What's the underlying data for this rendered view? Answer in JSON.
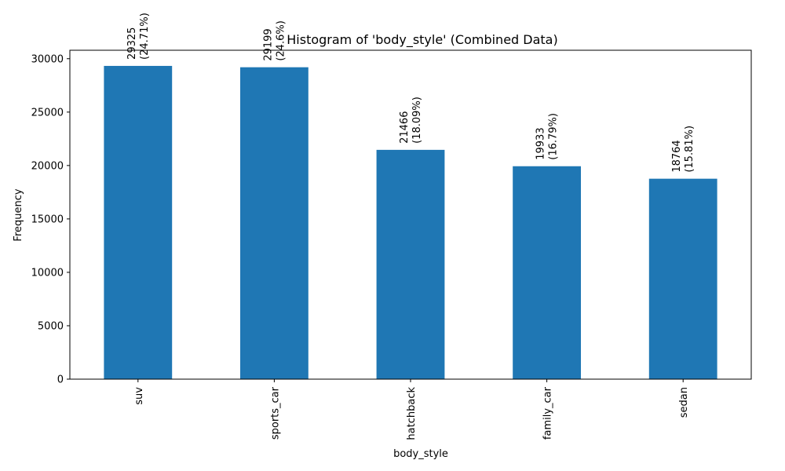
{
  "chart_data": {
    "type": "bar",
    "title": "Histogram of 'body_style' (Combined Data)",
    "xlabel": "body_style",
    "ylabel": "Frequency",
    "categories": [
      "suv",
      "sports_car",
      "hatchback",
      "family_car",
      "sedan"
    ],
    "values": [
      29325,
      29199,
      21466,
      19933,
      18764
    ],
    "percentages": [
      "(24.71%)",
      "(24.6%)",
      "(18.09%)",
      "(16.79%)",
      "(15.81%)"
    ],
    "value_labels": [
      "29325",
      "29199",
      "21466",
      "19933",
      "18764"
    ],
    "ylim": [
      0,
      30791
    ],
    "yticks": [
      0,
      5000,
      10000,
      15000,
      20000,
      25000,
      30000
    ],
    "ytick_labels": [
      "0",
      "5000",
      "10000",
      "15000",
      "20000",
      "25000",
      "30000"
    ],
    "bar_color": "#1f77b4",
    "grid": false,
    "legend": "none"
  }
}
